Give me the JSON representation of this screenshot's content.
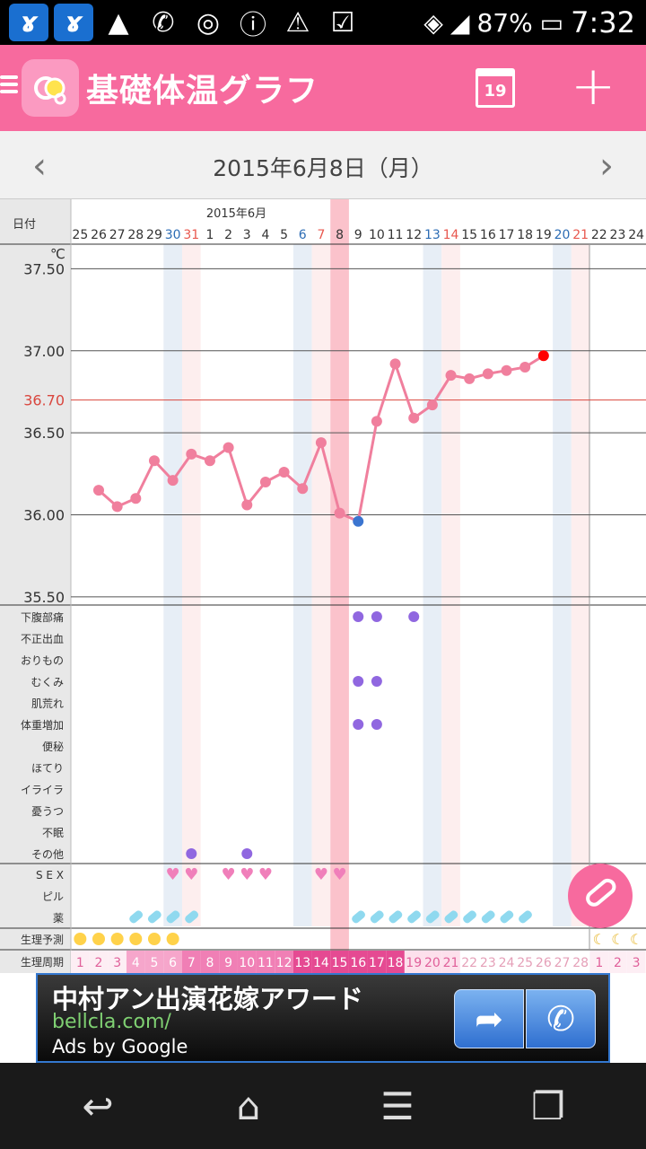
{
  "status_bar": {
    "battery": "87%",
    "time": "7:32"
  },
  "app_bar": {
    "title": "基礎体温グラフ",
    "calendar_day": "19"
  },
  "date_nav": {
    "date": "2015年6月8日（月）"
  },
  "chart_data": {
    "type": "line",
    "month_label": "2015年6月",
    "date_header_label": "日付",
    "unit": "℃",
    "x": [
      "25",
      "26",
      "27",
      "28",
      "29",
      "30",
      "31",
      "1",
      "2",
      "3",
      "4",
      "5",
      "6",
      "7",
      "8",
      "9",
      "10",
      "11",
      "12",
      "13",
      "14",
      "15",
      "16",
      "17",
      "18",
      "19",
      "20",
      "21",
      "22",
      "23",
      "24"
    ],
    "saturday_idx": [
      5,
      12,
      19,
      26
    ],
    "sunday_idx": [
      6,
      13,
      20,
      27
    ],
    "selected_idx": 14,
    "temperatures": [
      null,
      36.15,
      36.05,
      36.1,
      36.33,
      36.21,
      36.37,
      36.33,
      36.41,
      36.06,
      36.2,
      36.26,
      36.16,
      36.44,
      36.01,
      35.96,
      36.57,
      36.92,
      36.59,
      36.67,
      36.85,
      36.83,
      36.86,
      36.88,
      36.9,
      36.97,
      null,
      null,
      null,
      null,
      null
    ],
    "low_point_idx": 15,
    "latest_point_idx": 25,
    "yticks": [
      "37.50",
      "37.00",
      "36.50",
      "36.00",
      "35.50"
    ],
    "reference": "36.70",
    "ylim": [
      35.45,
      37.65
    ],
    "symptom_labels": [
      "下腹部痛",
      "不正出血",
      "おりもの",
      "むくみ",
      "肌荒れ",
      "体重増加",
      "便秘",
      "ほてり",
      "イライラ",
      "憂うつ",
      "不眠",
      "その他"
    ],
    "symptom_marks": [
      [
        15,
        0
      ],
      [
        16,
        0
      ],
      [
        18,
        0
      ],
      [
        15,
        3
      ],
      [
        16,
        3
      ],
      [
        15,
        5
      ],
      [
        16,
        5
      ],
      [
        6,
        11
      ],
      [
        9,
        11
      ]
    ],
    "sex_label": "S E X",
    "pill_label": "ピル",
    "medicine_label": "薬",
    "sex_idx": [
      5,
      6,
      8,
      9,
      10,
      13,
      14
    ],
    "medicine_idx": [
      3,
      4,
      5,
      6,
      15,
      16,
      17,
      18,
      19,
      20,
      21,
      22,
      23,
      24
    ],
    "period_forecast_label": "生理予測",
    "period_forecast_idx": [
      0,
      1,
      2,
      3,
      4,
      5,
      28,
      29,
      30
    ],
    "cycle_label": "生理周期",
    "cycle_days": [
      "1",
      "2",
      "3",
      "4",
      "5",
      "6",
      "7",
      "8",
      "9",
      "10",
      "11",
      "12",
      "13",
      "14",
      "15",
      "16",
      "17",
      "18",
      "19",
      "20",
      "21",
      "22",
      "23",
      "24",
      "25",
      "26",
      "27",
      "28",
      "1",
      "2",
      "3"
    ]
  },
  "ad": {
    "headline": "中村アン出演花嫁アワード",
    "url": "bellcla.com/",
    "ads_by": "Ads by Google"
  },
  "colors": {
    "pink": "#f76a9e",
    "line": "#f07f9d",
    "saturday": "#2c6cb4",
    "sunday": "#e8574e",
    "symptom": "#9067e0",
    "low_point": "#3b75d0",
    "latest_point": "#ff0000",
    "reference": "#d9463e"
  }
}
